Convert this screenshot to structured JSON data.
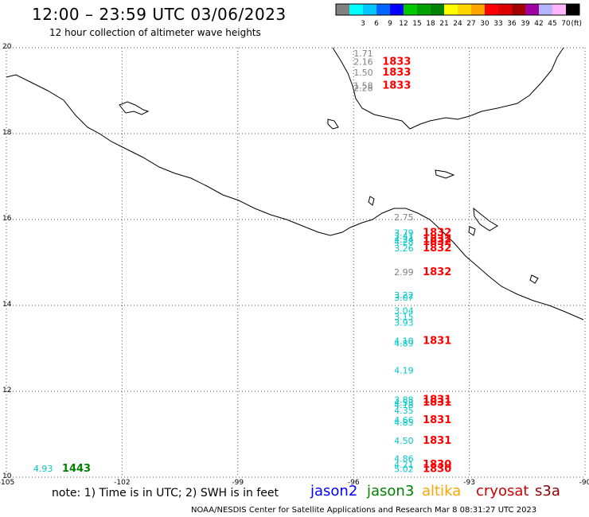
{
  "header": {
    "title": "12:00 – 23:59 UTC 03/06/2023",
    "subtitle": "12 hour collection of altimeter wave heights"
  },
  "color_scale": {
    "unit_label": "(ft)",
    "bins": [
      {
        "label": "",
        "color": "#808080"
      },
      {
        "label": "3",
        "color": "#00ffff"
      },
      {
        "label": "6",
        "color": "#00c8ff"
      },
      {
        "label": "9",
        "color": "#0064ff"
      },
      {
        "label": "12",
        "color": "#0000ff"
      },
      {
        "label": "15",
        "color": "#00c800"
      },
      {
        "label": "18",
        "color": "#00a000"
      },
      {
        "label": "21",
        "color": "#008200"
      },
      {
        "label": "24",
        "color": "#ffff00"
      },
      {
        "label": "27",
        "color": "#ffd700"
      },
      {
        "label": "30",
        "color": "#ffa500"
      },
      {
        "label": "33",
        "color": "#ff0000"
      },
      {
        "label": "36",
        "color": "#dc0000"
      },
      {
        "label": "39",
        "color": "#a00000"
      },
      {
        "label": "42",
        "color": "#a000a0"
      },
      {
        "label": "45",
        "color": "#b4b4ff"
      },
      {
        "label": "70",
        "color": "#ffb4ff"
      },
      {
        "label": "",
        "color": "#000000"
      }
    ]
  },
  "map": {
    "lon_range": [
      -105,
      -90
    ],
    "lat_range": [
      10,
      20
    ],
    "lon_ticks": [
      "-105",
      "-102",
      "-99",
      "-96",
      "-93",
      "-90"
    ],
    "lat_ticks": [
      "20",
      "18",
      "16",
      "14",
      "12",
      "10"
    ],
    "observations": [
      {
        "lon": -104.3,
        "lat": 10.13,
        "swh": "4.93",
        "color": "#00c8c8",
        "time": "1443",
        "tcolor": "#008200"
      },
      {
        "lon": -96.0,
        "lat": 19.8,
        "swh": "1.71",
        "color": "#808080",
        "time": "",
        "tcolor": "#ff0000"
      },
      {
        "lon": -96.0,
        "lat": 19.6,
        "swh": "2.16",
        "color": "#808080",
        "time": "1833",
        "tcolor": "#ff0000"
      },
      {
        "lon": -96.0,
        "lat": 19.35,
        "swh": "1.50",
        "color": "#808080",
        "time": "1833",
        "tcolor": "#ff0000"
      },
      {
        "lon": -96.0,
        "lat": 19.05,
        "swh": "1.58",
        "color": "#808080",
        "time": "1833",
        "tcolor": "#ff0000"
      },
      {
        "lon": -96.0,
        "lat": 18.99,
        "swh": "2.28",
        "color": "#808080",
        "time": "",
        "tcolor": "#ff0000"
      },
      {
        "lon": -94.95,
        "lat": 15.98,
        "swh": "2.75",
        "color": "#808080",
        "time": "",
        "tcolor": "#ff0000"
      },
      {
        "lon": -94.95,
        "lat": 15.62,
        "swh": "3.79",
        "color": "#00c8c8",
        "time": "1832",
        "tcolor": "#ff0000"
      },
      {
        "lon": -94.95,
        "lat": 15.55,
        "swh": "3.41",
        "color": "#00c8c8",
        "time": "",
        "tcolor": "#ff0000"
      },
      {
        "lon": -94.95,
        "lat": 15.46,
        "swh": "4.24",
        "color": "#00c8c8",
        "time": "1832",
        "tcolor": "#ff0000"
      },
      {
        "lon": -94.95,
        "lat": 15.41,
        "swh": "4.28",
        "color": "#00c8c8",
        "time": "1832",
        "tcolor": "#ff0000"
      },
      {
        "lon": -94.95,
        "lat": 15.26,
        "swh": "3.26",
        "color": "#00c8c8",
        "time": "1832",
        "tcolor": "#ff0000"
      },
      {
        "lon": -94.95,
        "lat": 14.7,
        "swh": "2.99",
        "color": "#808080",
        "time": "1832",
        "tcolor": "#ff0000"
      },
      {
        "lon": -94.95,
        "lat": 14.17,
        "swh": "3.22",
        "color": "#00c8c8",
        "time": "",
        "tcolor": "#ff0000"
      },
      {
        "lon": -94.95,
        "lat": 14.11,
        "swh": "3.07",
        "color": "#00c8c8",
        "time": "",
        "tcolor": "#ff0000"
      },
      {
        "lon": -94.95,
        "lat": 13.81,
        "swh": "3.04",
        "color": "#00c8c8",
        "time": "",
        "tcolor": "#ff0000"
      },
      {
        "lon": -94.95,
        "lat": 13.67,
        "swh": "3.15",
        "color": "#00c8c8",
        "time": "",
        "tcolor": "#ff0000"
      },
      {
        "lon": -94.95,
        "lat": 13.53,
        "swh": "3.93",
        "color": "#00c8c8",
        "time": "",
        "tcolor": "#ff0000"
      },
      {
        "lon": -94.95,
        "lat": 13.1,
        "swh": "4.10",
        "color": "#00c8c8",
        "time": "1831",
        "tcolor": "#ff0000"
      },
      {
        "lon": -94.95,
        "lat": 13.05,
        "swh": "4.89",
        "color": "#00c8c8",
        "time": "",
        "tcolor": "#ff0000"
      },
      {
        "lon": -94.95,
        "lat": 12.42,
        "swh": "4.19",
        "color": "#00c8c8",
        "time": "",
        "tcolor": "#ff0000"
      },
      {
        "lon": -94.95,
        "lat": 11.73,
        "swh": "3.88",
        "color": "#00c8c8",
        "time": "1831",
        "tcolor": "#ff0000"
      },
      {
        "lon": -94.95,
        "lat": 11.67,
        "swh": "4.53",
        "color": "#00c8c8",
        "time": "1831",
        "tcolor": "#ff0000"
      },
      {
        "lon": -94.95,
        "lat": 11.61,
        "swh": "4.18",
        "color": "#00c8c8",
        "time": "",
        "tcolor": "#ff0000"
      },
      {
        "lon": -94.95,
        "lat": 11.48,
        "swh": "4.35",
        "color": "#00c8c8",
        "time": "",
        "tcolor": "#ff0000"
      },
      {
        "lon": -94.95,
        "lat": 11.26,
        "swh": "4.66",
        "color": "#00c8c8",
        "time": "1831",
        "tcolor": "#ff0000"
      },
      {
        "lon": -94.95,
        "lat": 11.2,
        "swh": "4.85",
        "color": "#00c8c8",
        "time": "",
        "tcolor": "#ff0000"
      },
      {
        "lon": -94.95,
        "lat": 10.78,
        "swh": "4.50",
        "color": "#00c8c8",
        "time": "1831",
        "tcolor": "#ff0000"
      },
      {
        "lon": -94.95,
        "lat": 10.36,
        "swh": "4.86",
        "color": "#00c8c8",
        "time": "",
        "tcolor": "#ff0000"
      },
      {
        "lon": -94.95,
        "lat": 10.22,
        "swh": "4.21",
        "color": "#00c8c8",
        "time": "1830",
        "tcolor": "#ff0000"
      },
      {
        "lon": -94.95,
        "lat": 10.12,
        "swh": "5.02",
        "color": "#00c8c8",
        "time": "1830",
        "tcolor": "#ff0000"
      }
    ]
  },
  "footer": {
    "note": "note: 1) Time is in UTC; 2) SWH is in feet",
    "satellites": [
      {
        "name": "jason2",
        "color": "#0000ff"
      },
      {
        "name": "jason3",
        "color": "#008200"
      },
      {
        "name": "altika",
        "color": "#ffa500"
      },
      {
        "name": "cryosat",
        "color": "#cc0000"
      },
      {
        "name": "s3a",
        "color": "#8b0000"
      }
    ],
    "credit": "NOAA/NESDIS Center for Satellite Applications and Research    Mar  8 08:31:27 UTC 2023"
  }
}
